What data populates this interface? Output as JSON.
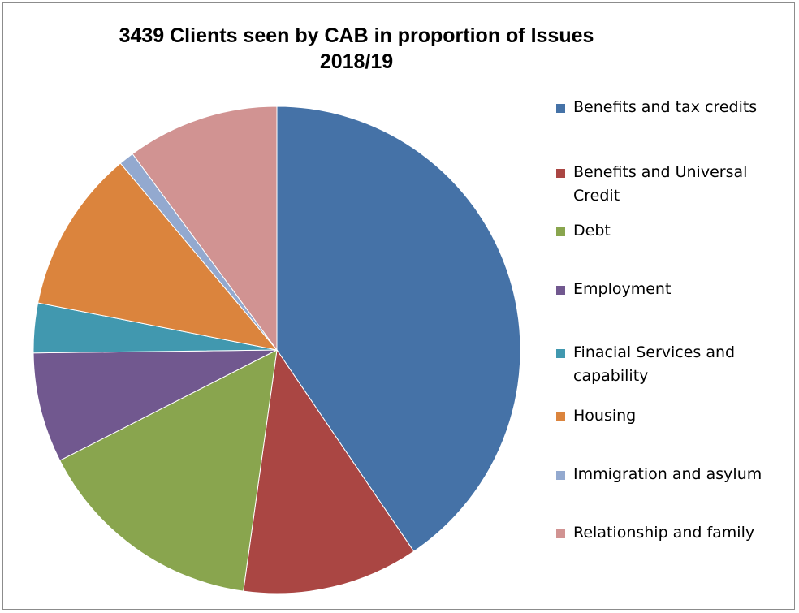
{
  "chart_data": {
    "type": "pie",
    "title": [
      "3439 Clients seen by CAB in proportion of Issues",
      "2018/19"
    ],
    "categories": [
      "Benefits and tax credits",
      "Benefits and Universal Credit",
      "Debt",
      "Employment",
      "Finacial Services and capability",
      "Housing",
      "Immigration and asylum",
      "Relationship and family"
    ],
    "labels": [
      "Benefits and tax credits",
      "Benefits and Universal Credit",
      "Debt",
      "Employment",
      "Finacial Services and capability",
      "Housing",
      "Immigration and asylum",
      "Relationship and family"
    ],
    "values": [
      40.5,
      11.7,
      15.3,
      7.3,
      3.3,
      10.8,
      1.0,
      10.1
    ],
    "value_unit": "percent (estimated share)",
    "colors": [
      "#4572a7",
      "#aa4643",
      "#89a54e",
      "#71588f",
      "#4198af",
      "#db843d",
      "#93a9cf",
      "#d19392"
    ],
    "legend_position": "right",
    "start_angle": "12 o'clock, clockwise"
  }
}
